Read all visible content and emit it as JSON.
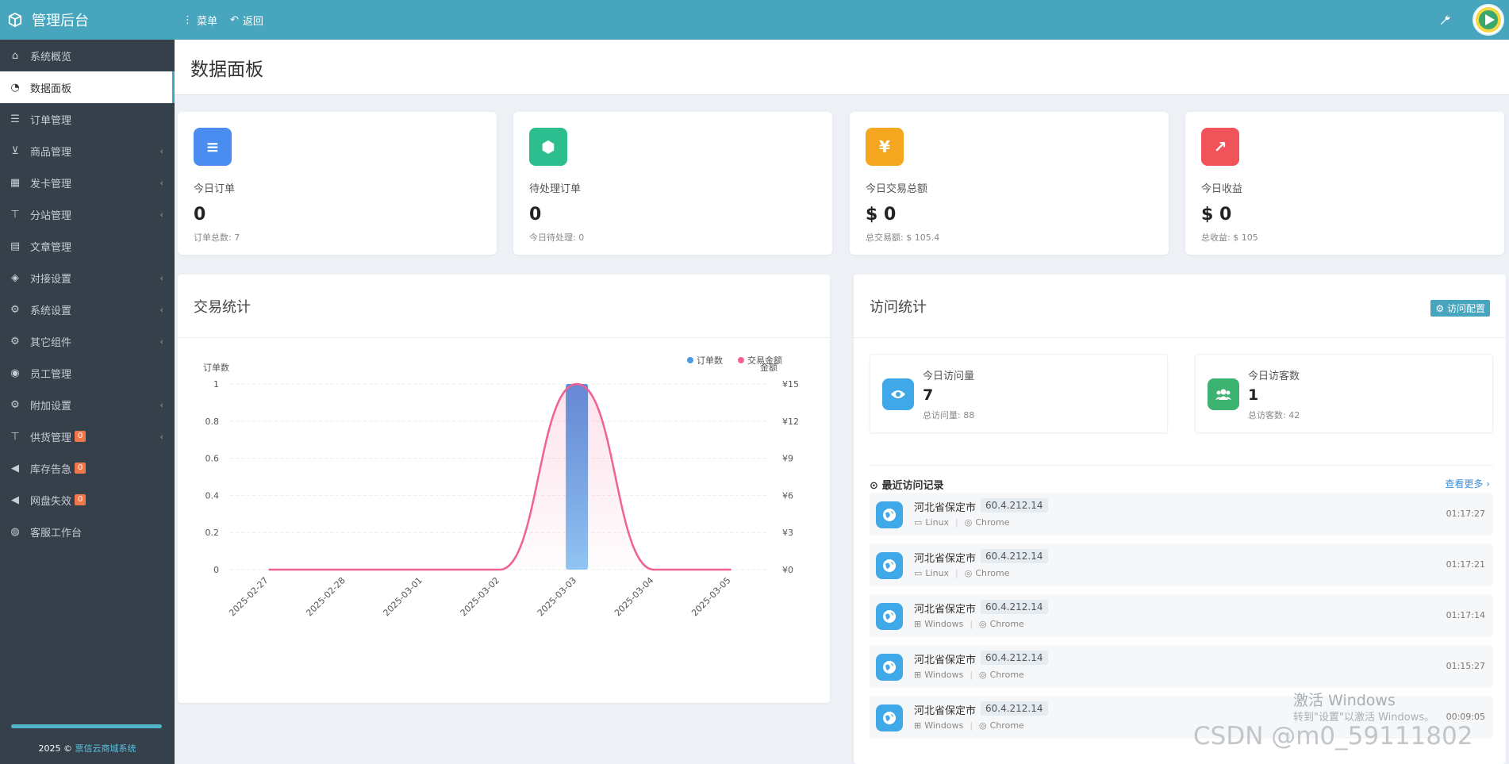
{
  "brand": {
    "title": "管理后台"
  },
  "topbar": {
    "menu_label": "菜单",
    "back_label": "返回"
  },
  "sidebar": {
    "items": [
      {
        "label": "系统概览",
        "icon": "home-icon"
      },
      {
        "label": "数据面板",
        "icon": "dashboard-icon",
        "active": true
      },
      {
        "label": "订单管理",
        "icon": "list-icon"
      },
      {
        "label": "商品管理",
        "icon": "cart-icon",
        "arrow": true
      },
      {
        "label": "发卡管理",
        "icon": "grid-icon",
        "arrow": true
      },
      {
        "label": "分站管理",
        "icon": "sitemap-icon",
        "arrow": true
      },
      {
        "label": "文章管理",
        "icon": "book-icon"
      },
      {
        "label": "对接设置",
        "icon": "cubes-icon",
        "arrow": true
      },
      {
        "label": "系统设置",
        "icon": "gear-icon",
        "arrow": true
      },
      {
        "label": "其它组件",
        "icon": "cogs-icon",
        "arrow": true
      },
      {
        "label": "员工管理",
        "icon": "user-icon"
      },
      {
        "label": "附加设置",
        "icon": "gear-icon",
        "arrow": true
      },
      {
        "label": "供货管理",
        "icon": "sitemap-icon",
        "arrow": true,
        "badge": "0"
      },
      {
        "label": "库存告急",
        "icon": "bullhorn-icon",
        "badge": "0"
      },
      {
        "label": "网盘失效",
        "icon": "bullhorn-icon",
        "badge": "0"
      },
      {
        "label": "客服工作台",
        "icon": "comments-icon"
      }
    ],
    "footer_year": "2025 ©",
    "footer_link": "票信云商城系统"
  },
  "page": {
    "title": "数据面板"
  },
  "stats": [
    {
      "label": "今日订单",
      "value": "0",
      "sub": "订单总数: 7",
      "icon": "list-ol-icon",
      "color": "#4a8cf0",
      "glyph": "≡"
    },
    {
      "label": "待处理订单",
      "value": "0",
      "sub": "今日待处理: 0",
      "icon": "cube-icon",
      "color": "#2dbe8f",
      "glyph": "⬢"
    },
    {
      "label": "今日交易总额",
      "value": "$ 0",
      "sub": "总交易额: $ 105.4",
      "icon": "yen-icon",
      "color": "#f5a81f",
      "glyph": "¥"
    },
    {
      "label": "今日收益",
      "value": "$ 0",
      "sub": "总收益: $ 105",
      "icon": "line-chart-icon",
      "color": "#f0535a",
      "glyph": "↗"
    }
  ],
  "trade": {
    "title": "交易统计"
  },
  "chart_data": {
    "type": "bar",
    "categories": [
      "2025-02-27",
      "2025-02-28",
      "2025-03-01",
      "2025-03-02",
      "2025-03-03",
      "2025-03-04",
      "2025-03-05"
    ],
    "series": [
      {
        "name": "订单数",
        "type": "bar",
        "axis": "left",
        "values": [
          0,
          0,
          0,
          0,
          1,
          0,
          0
        ],
        "color": "#4a9be6"
      },
      {
        "name": "交易金额",
        "type": "line",
        "axis": "right",
        "values": [
          0,
          0,
          0,
          0,
          15,
          0,
          0
        ],
        "color": "#f06292"
      }
    ],
    "ylabel_left": "订单数",
    "ylabel_right": "金额",
    "yticks_left": [
      "0",
      "0.2",
      "0.4",
      "0.6",
      "0.8",
      "1"
    ],
    "yticks_right": [
      "¥0",
      "¥3",
      "¥6",
      "¥9",
      "¥12",
      "¥15"
    ],
    "ylim_left": [
      0,
      1
    ],
    "ylim_right": [
      0,
      15
    ],
    "legend": "top-right",
    "grid": true
  },
  "visit": {
    "title": "访问统计",
    "config_label": "访问配置",
    "today_visits_label": "今日访问量",
    "today_visits": "7",
    "total_visits": "总访问量: 88",
    "today_visitors_label": "今日访客数",
    "today_visitors": "1",
    "total_visitors": "总访客数: 42",
    "recent_title": "最近访问记录",
    "more_label": "查看更多 ›",
    "records": [
      {
        "location": "河北省保定市",
        "ip": "60.4.212.14",
        "os": "Linux",
        "browser": "Chrome",
        "time": "01:17:27"
      },
      {
        "location": "河北省保定市",
        "ip": "60.4.212.14",
        "os": "Linux",
        "browser": "Chrome",
        "time": "01:17:21"
      },
      {
        "location": "河北省保定市",
        "ip": "60.4.212.14",
        "os": "Windows",
        "browser": "Chrome",
        "time": "01:17:14"
      },
      {
        "location": "河北省保定市",
        "ip": "60.4.212.14",
        "os": "Windows",
        "browser": "Chrome",
        "time": "01:15:27"
      },
      {
        "location": "河北省保定市",
        "ip": "60.4.212.14",
        "os": "Windows",
        "browser": "Chrome",
        "time": "00:09:05"
      }
    ]
  },
  "watermarks": {
    "win_line1": "激活 Windows",
    "win_line2": "转到\"设置\"以激活 Windows。",
    "csdn": "CSDN @m0_59111802"
  }
}
